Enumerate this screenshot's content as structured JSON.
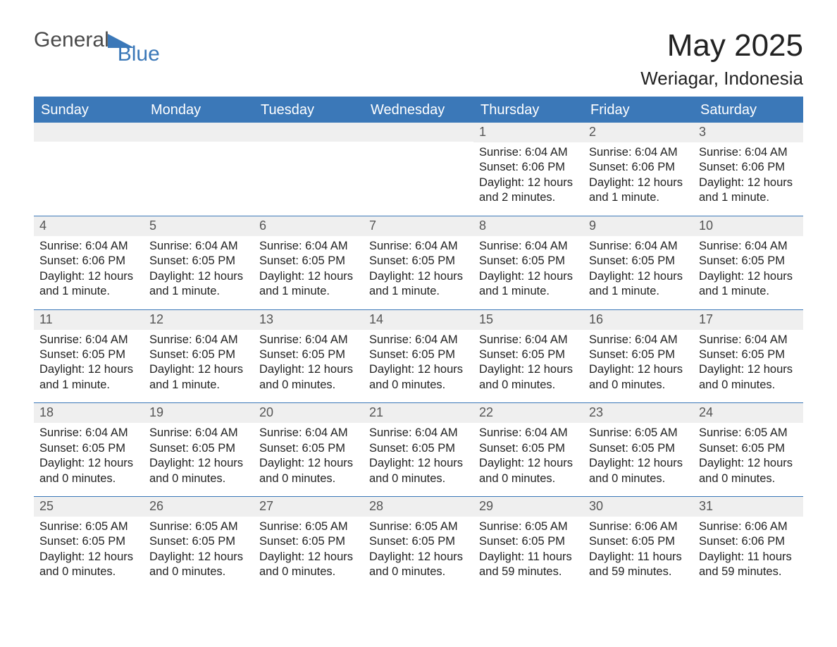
{
  "logo": {
    "part1": "General",
    "part2": "Blue"
  },
  "title": "May 2025",
  "location": "Weriagar, Indonesia",
  "header_bg": "#3b78b8",
  "header_fg": "#ffffff",
  "daynum_bg": "#efefef",
  "text_color": "#222222",
  "day_headers": [
    "Sunday",
    "Monday",
    "Tuesday",
    "Wednesday",
    "Thursday",
    "Friday",
    "Saturday"
  ],
  "weeks": [
    [
      {
        "day": null
      },
      {
        "day": null
      },
      {
        "day": null
      },
      {
        "day": null
      },
      {
        "day": "1",
        "sunrise": "Sunrise: 6:04 AM",
        "sunset": "Sunset: 6:06 PM",
        "daylight1": "Daylight: 12 hours",
        "daylight2": "and 2 minutes."
      },
      {
        "day": "2",
        "sunrise": "Sunrise: 6:04 AM",
        "sunset": "Sunset: 6:06 PM",
        "daylight1": "Daylight: 12 hours",
        "daylight2": "and 1 minute."
      },
      {
        "day": "3",
        "sunrise": "Sunrise: 6:04 AM",
        "sunset": "Sunset: 6:06 PM",
        "daylight1": "Daylight: 12 hours",
        "daylight2": "and 1 minute."
      }
    ],
    [
      {
        "day": "4",
        "sunrise": "Sunrise: 6:04 AM",
        "sunset": "Sunset: 6:06 PM",
        "daylight1": "Daylight: 12 hours",
        "daylight2": "and 1 minute."
      },
      {
        "day": "5",
        "sunrise": "Sunrise: 6:04 AM",
        "sunset": "Sunset: 6:05 PM",
        "daylight1": "Daylight: 12 hours",
        "daylight2": "and 1 minute."
      },
      {
        "day": "6",
        "sunrise": "Sunrise: 6:04 AM",
        "sunset": "Sunset: 6:05 PM",
        "daylight1": "Daylight: 12 hours",
        "daylight2": "and 1 minute."
      },
      {
        "day": "7",
        "sunrise": "Sunrise: 6:04 AM",
        "sunset": "Sunset: 6:05 PM",
        "daylight1": "Daylight: 12 hours",
        "daylight2": "and 1 minute."
      },
      {
        "day": "8",
        "sunrise": "Sunrise: 6:04 AM",
        "sunset": "Sunset: 6:05 PM",
        "daylight1": "Daylight: 12 hours",
        "daylight2": "and 1 minute."
      },
      {
        "day": "9",
        "sunrise": "Sunrise: 6:04 AM",
        "sunset": "Sunset: 6:05 PM",
        "daylight1": "Daylight: 12 hours",
        "daylight2": "and 1 minute."
      },
      {
        "day": "10",
        "sunrise": "Sunrise: 6:04 AM",
        "sunset": "Sunset: 6:05 PM",
        "daylight1": "Daylight: 12 hours",
        "daylight2": "and 1 minute."
      }
    ],
    [
      {
        "day": "11",
        "sunrise": "Sunrise: 6:04 AM",
        "sunset": "Sunset: 6:05 PM",
        "daylight1": "Daylight: 12 hours",
        "daylight2": "and 1 minute."
      },
      {
        "day": "12",
        "sunrise": "Sunrise: 6:04 AM",
        "sunset": "Sunset: 6:05 PM",
        "daylight1": "Daylight: 12 hours",
        "daylight2": "and 1 minute."
      },
      {
        "day": "13",
        "sunrise": "Sunrise: 6:04 AM",
        "sunset": "Sunset: 6:05 PM",
        "daylight1": "Daylight: 12 hours",
        "daylight2": "and 0 minutes."
      },
      {
        "day": "14",
        "sunrise": "Sunrise: 6:04 AM",
        "sunset": "Sunset: 6:05 PM",
        "daylight1": "Daylight: 12 hours",
        "daylight2": "and 0 minutes."
      },
      {
        "day": "15",
        "sunrise": "Sunrise: 6:04 AM",
        "sunset": "Sunset: 6:05 PM",
        "daylight1": "Daylight: 12 hours",
        "daylight2": "and 0 minutes."
      },
      {
        "day": "16",
        "sunrise": "Sunrise: 6:04 AM",
        "sunset": "Sunset: 6:05 PM",
        "daylight1": "Daylight: 12 hours",
        "daylight2": "and 0 minutes."
      },
      {
        "day": "17",
        "sunrise": "Sunrise: 6:04 AM",
        "sunset": "Sunset: 6:05 PM",
        "daylight1": "Daylight: 12 hours",
        "daylight2": "and 0 minutes."
      }
    ],
    [
      {
        "day": "18",
        "sunrise": "Sunrise: 6:04 AM",
        "sunset": "Sunset: 6:05 PM",
        "daylight1": "Daylight: 12 hours",
        "daylight2": "and 0 minutes."
      },
      {
        "day": "19",
        "sunrise": "Sunrise: 6:04 AM",
        "sunset": "Sunset: 6:05 PM",
        "daylight1": "Daylight: 12 hours",
        "daylight2": "and 0 minutes."
      },
      {
        "day": "20",
        "sunrise": "Sunrise: 6:04 AM",
        "sunset": "Sunset: 6:05 PM",
        "daylight1": "Daylight: 12 hours",
        "daylight2": "and 0 minutes."
      },
      {
        "day": "21",
        "sunrise": "Sunrise: 6:04 AM",
        "sunset": "Sunset: 6:05 PM",
        "daylight1": "Daylight: 12 hours",
        "daylight2": "and 0 minutes."
      },
      {
        "day": "22",
        "sunrise": "Sunrise: 6:04 AM",
        "sunset": "Sunset: 6:05 PM",
        "daylight1": "Daylight: 12 hours",
        "daylight2": "and 0 minutes."
      },
      {
        "day": "23",
        "sunrise": "Sunrise: 6:05 AM",
        "sunset": "Sunset: 6:05 PM",
        "daylight1": "Daylight: 12 hours",
        "daylight2": "and 0 minutes."
      },
      {
        "day": "24",
        "sunrise": "Sunrise: 6:05 AM",
        "sunset": "Sunset: 6:05 PM",
        "daylight1": "Daylight: 12 hours",
        "daylight2": "and 0 minutes."
      }
    ],
    [
      {
        "day": "25",
        "sunrise": "Sunrise: 6:05 AM",
        "sunset": "Sunset: 6:05 PM",
        "daylight1": "Daylight: 12 hours",
        "daylight2": "and 0 minutes."
      },
      {
        "day": "26",
        "sunrise": "Sunrise: 6:05 AM",
        "sunset": "Sunset: 6:05 PM",
        "daylight1": "Daylight: 12 hours",
        "daylight2": "and 0 minutes."
      },
      {
        "day": "27",
        "sunrise": "Sunrise: 6:05 AM",
        "sunset": "Sunset: 6:05 PM",
        "daylight1": "Daylight: 12 hours",
        "daylight2": "and 0 minutes."
      },
      {
        "day": "28",
        "sunrise": "Sunrise: 6:05 AM",
        "sunset": "Sunset: 6:05 PM",
        "daylight1": "Daylight: 12 hours",
        "daylight2": "and 0 minutes."
      },
      {
        "day": "29",
        "sunrise": "Sunrise: 6:05 AM",
        "sunset": "Sunset: 6:05 PM",
        "daylight1": "Daylight: 11 hours",
        "daylight2": "and 59 minutes."
      },
      {
        "day": "30",
        "sunrise": "Sunrise: 6:06 AM",
        "sunset": "Sunset: 6:05 PM",
        "daylight1": "Daylight: 11 hours",
        "daylight2": "and 59 minutes."
      },
      {
        "day": "31",
        "sunrise": "Sunrise: 6:06 AM",
        "sunset": "Sunset: 6:06 PM",
        "daylight1": "Daylight: 11 hours",
        "daylight2": "and 59 minutes."
      }
    ]
  ]
}
